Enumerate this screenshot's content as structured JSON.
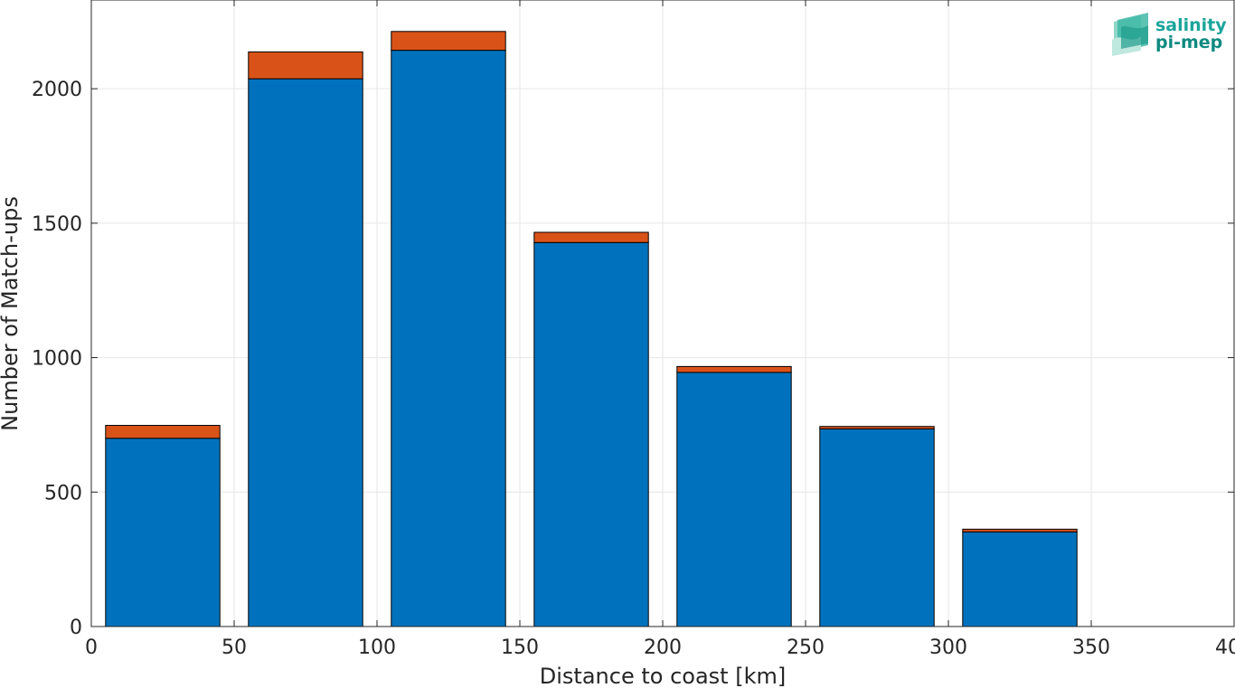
{
  "chart_data": {
    "type": "bar",
    "stacked": true,
    "xlabel": "Distance to coast [km]",
    "ylabel": "Number of Match-ups",
    "xlim": [
      0,
      400
    ],
    "ylim": [
      0,
      2330
    ],
    "xticks": [
      0,
      50,
      100,
      150,
      200,
      250,
      300,
      350,
      400
    ],
    "yticks": [
      0,
      500,
      1000,
      1500,
      2000
    ],
    "grid": true,
    "bin_edges": [
      [
        5,
        45
      ],
      [
        55,
        95
      ],
      [
        105,
        145
      ],
      [
        155,
        195
      ],
      [
        205,
        245
      ],
      [
        255,
        295
      ],
      [
        305,
        345
      ]
    ],
    "series": [
      {
        "color": "#0072bd",
        "values": [
          700,
          2037,
          2143,
          1428,
          945,
          735,
          352
        ]
      },
      {
        "color": "#d95319",
        "values": [
          48,
          100,
          70,
          38,
          22,
          9,
          10
        ]
      }
    ]
  },
  "logo": {
    "line1": "salinity",
    "line2": "pi-mep",
    "color": "#1aa59a",
    "color_dark": "#0f8a7f"
  }
}
